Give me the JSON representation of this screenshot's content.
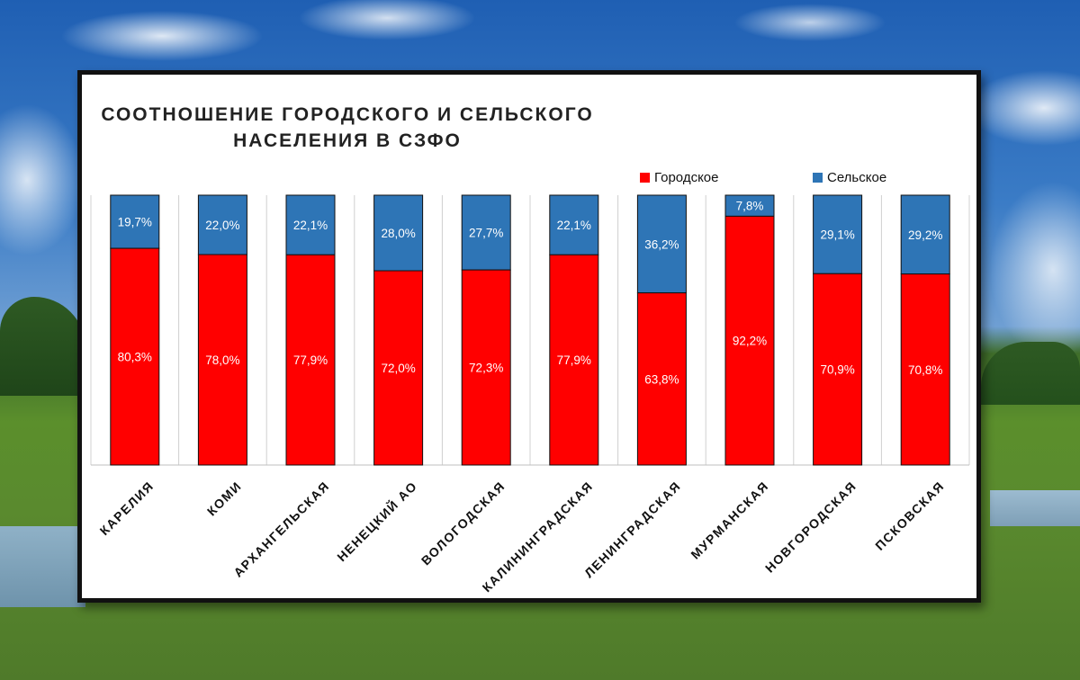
{
  "chart_data": {
    "type": "bar",
    "stacked": true,
    "title": "СООТНОШЕНИЕ ГОРОДСКОГО И СЕЛЬСКОГО\nНАСЕЛЕНИЯ В СЗФО",
    "categories": [
      "КАРЕЛИЯ",
      "КОМИ",
      "АРХАНГЕЛЬСКАЯ",
      "НЕНЕЦКИЙ АО",
      "ВОЛОГОДСКАЯ",
      "КАЛИНИНГРАДСКАЯ",
      "ЛЕНИНГРАДСКАЯ",
      "МУРМАНСКАЯ",
      "НОВГОРОДСКАЯ",
      "ПСКОВСКАЯ"
    ],
    "series": [
      {
        "name": "Городское",
        "color": "#ff0000",
        "values": [
          80.3,
          78.0,
          77.9,
          72.0,
          72.3,
          77.9,
          63.8,
          92.2,
          70.9,
          70.8
        ],
        "labels": [
          "80,3%",
          "78,0%",
          "77,9%",
          "72,0%",
          "72,3%",
          "77,9%",
          "63,8%",
          "92,2%",
          "70,9%",
          "70,8%"
        ]
      },
      {
        "name": "Сельское",
        "color": "#2e75b6",
        "values": [
          19.7,
          22.0,
          22.1,
          28.0,
          27.7,
          22.1,
          36.2,
          7.8,
          29.1,
          29.2
        ],
        "labels": [
          "19,7%",
          "22,0%",
          "22,1%",
          "28,0%",
          "27,7%",
          "22,1%",
          "36,2%",
          "7,8%",
          "29,1%",
          "29,2%"
        ]
      }
    ],
    "ylim": [
      0,
      100
    ],
    "grid": false,
    "legend_position": "top-right"
  }
}
